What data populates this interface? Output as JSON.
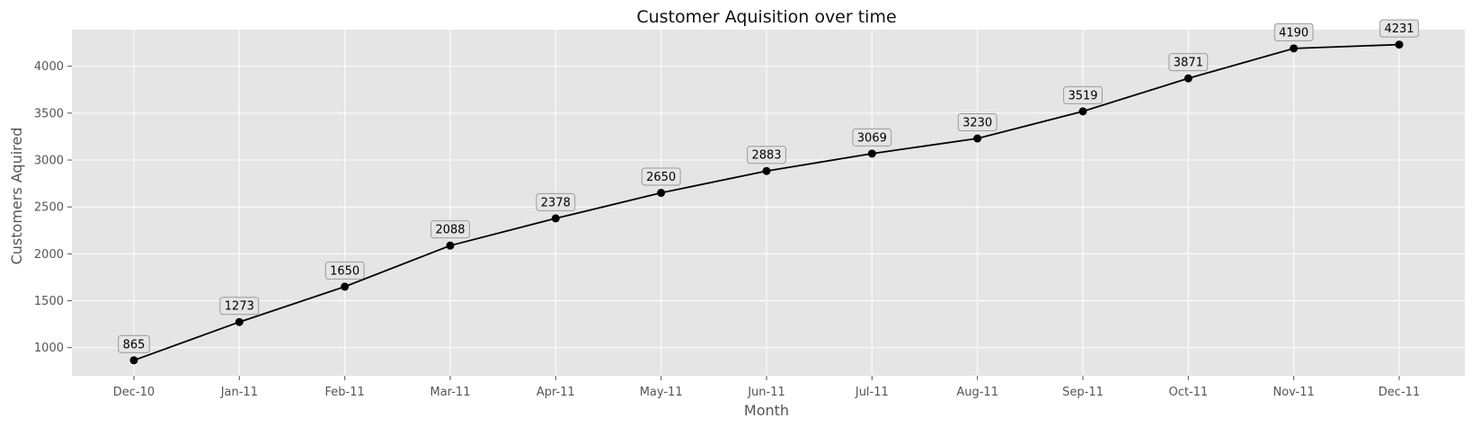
{
  "chart_data": {
    "type": "line",
    "title": "Customer Aquisition over time",
    "xlabel": "Month",
    "ylabel": "Customers Aquired",
    "categories": [
      "Dec-10",
      "Jan-11",
      "Feb-11",
      "Mar-11",
      "Apr-11",
      "May-11",
      "Jun-11",
      "Jul-11",
      "Aug-11",
      "Sep-11",
      "Oct-11",
      "Nov-11",
      "Dec-11"
    ],
    "series": [
      {
        "values": [
          865,
          1273,
          1650,
          2088,
          2378,
          2650,
          2883,
          3069,
          3230,
          3519,
          3871,
          4190,
          4231
        ]
      }
    ],
    "ylim": [
      700,
      4390
    ],
    "yticks": [
      1000,
      1500,
      2000,
      2500,
      3000,
      3500,
      4000
    ],
    "grid": true,
    "legend": "none",
    "colors": {
      "line": "#000000",
      "marker": "#000000",
      "plot_bg": "#e5e5e5",
      "grid": "#ffffff"
    }
  }
}
